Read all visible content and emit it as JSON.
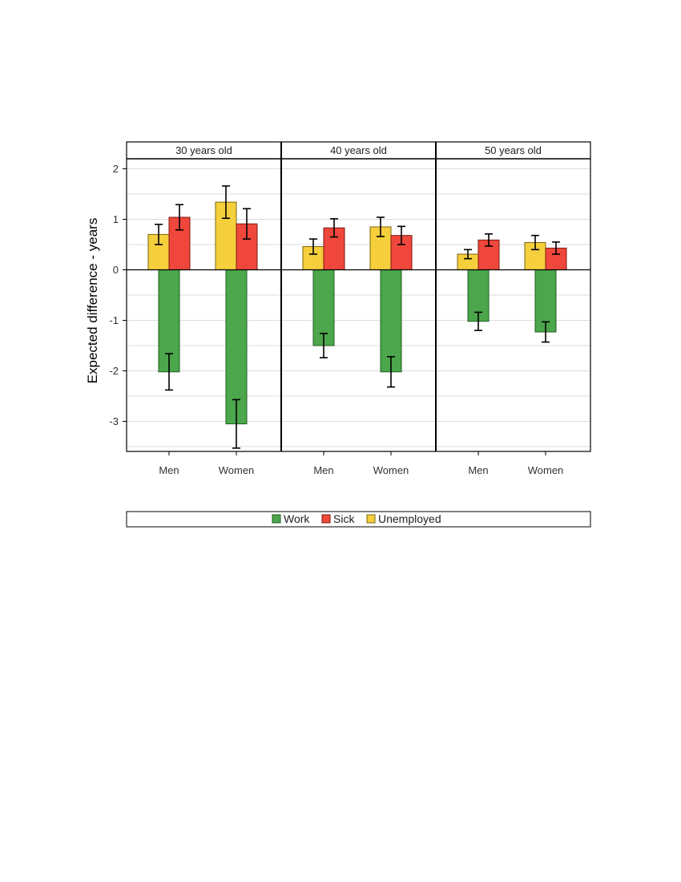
{
  "chart_data": {
    "type": "bar",
    "ylabel": "Expected difference - years",
    "ylim": [
      -3.6,
      2.2
    ],
    "yticks": [
      2,
      1,
      0,
      -1,
      -2,
      -3
    ],
    "grid": true,
    "legend_placement": "bottom",
    "panels": [
      "30 years old",
      "40 years old",
      "50 years old"
    ],
    "categories": [
      "Men",
      "Women"
    ],
    "series": [
      {
        "name": "Work",
        "color": "#4ca64c",
        "values": [
          [
            -2.02,
            -3.05
          ],
          [
            -1.5,
            -2.02
          ],
          [
            -1.02,
            -1.23
          ]
        ],
        "err": [
          [
            0.36,
            0.48
          ],
          [
            0.24,
            0.3
          ],
          [
            0.18,
            0.2
          ]
        ]
      },
      {
        "name": "Sick",
        "color": "#f0473c",
        "values": [
          [
            1.04,
            0.91
          ],
          [
            0.83,
            0.68
          ],
          [
            0.59,
            0.43
          ]
        ],
        "err": [
          [
            0.25,
            0.3
          ],
          [
            0.18,
            0.18
          ],
          [
            0.12,
            0.12
          ]
        ]
      },
      {
        "name": "Unemployed",
        "color": "#f5cf3c",
        "values": [
          [
            0.7,
            1.34
          ],
          [
            0.46,
            0.85
          ],
          [
            0.31,
            0.54
          ]
        ],
        "err": [
          [
            0.2,
            0.32
          ],
          [
            0.15,
            0.19
          ],
          [
            0.09,
            0.14
          ]
        ]
      }
    ]
  }
}
